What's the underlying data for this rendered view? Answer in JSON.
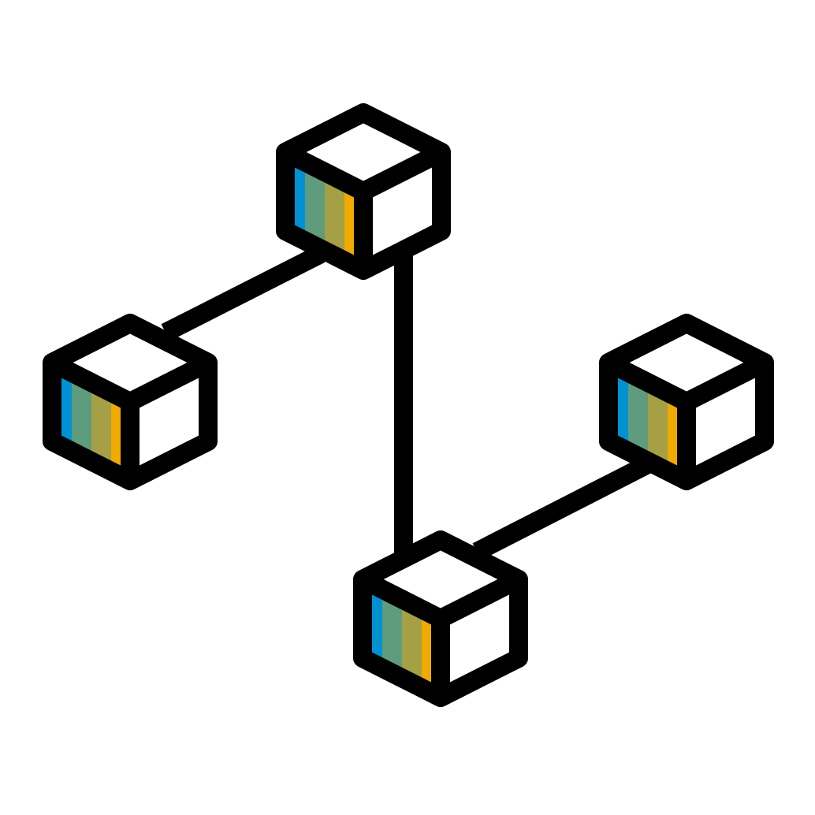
{
  "icon": {
    "name": "network-cubes-icon",
    "cube_count": 4,
    "link_count": 3
  },
  "colors": {
    "outline": "#000000",
    "background": "#ffffff",
    "face_top": "#ffffff",
    "face_right": "#ffffff",
    "stripes": [
      "#0091d2",
      "#5f9b7d",
      "#a5a046",
      "#f0aa00"
    ]
  }
}
